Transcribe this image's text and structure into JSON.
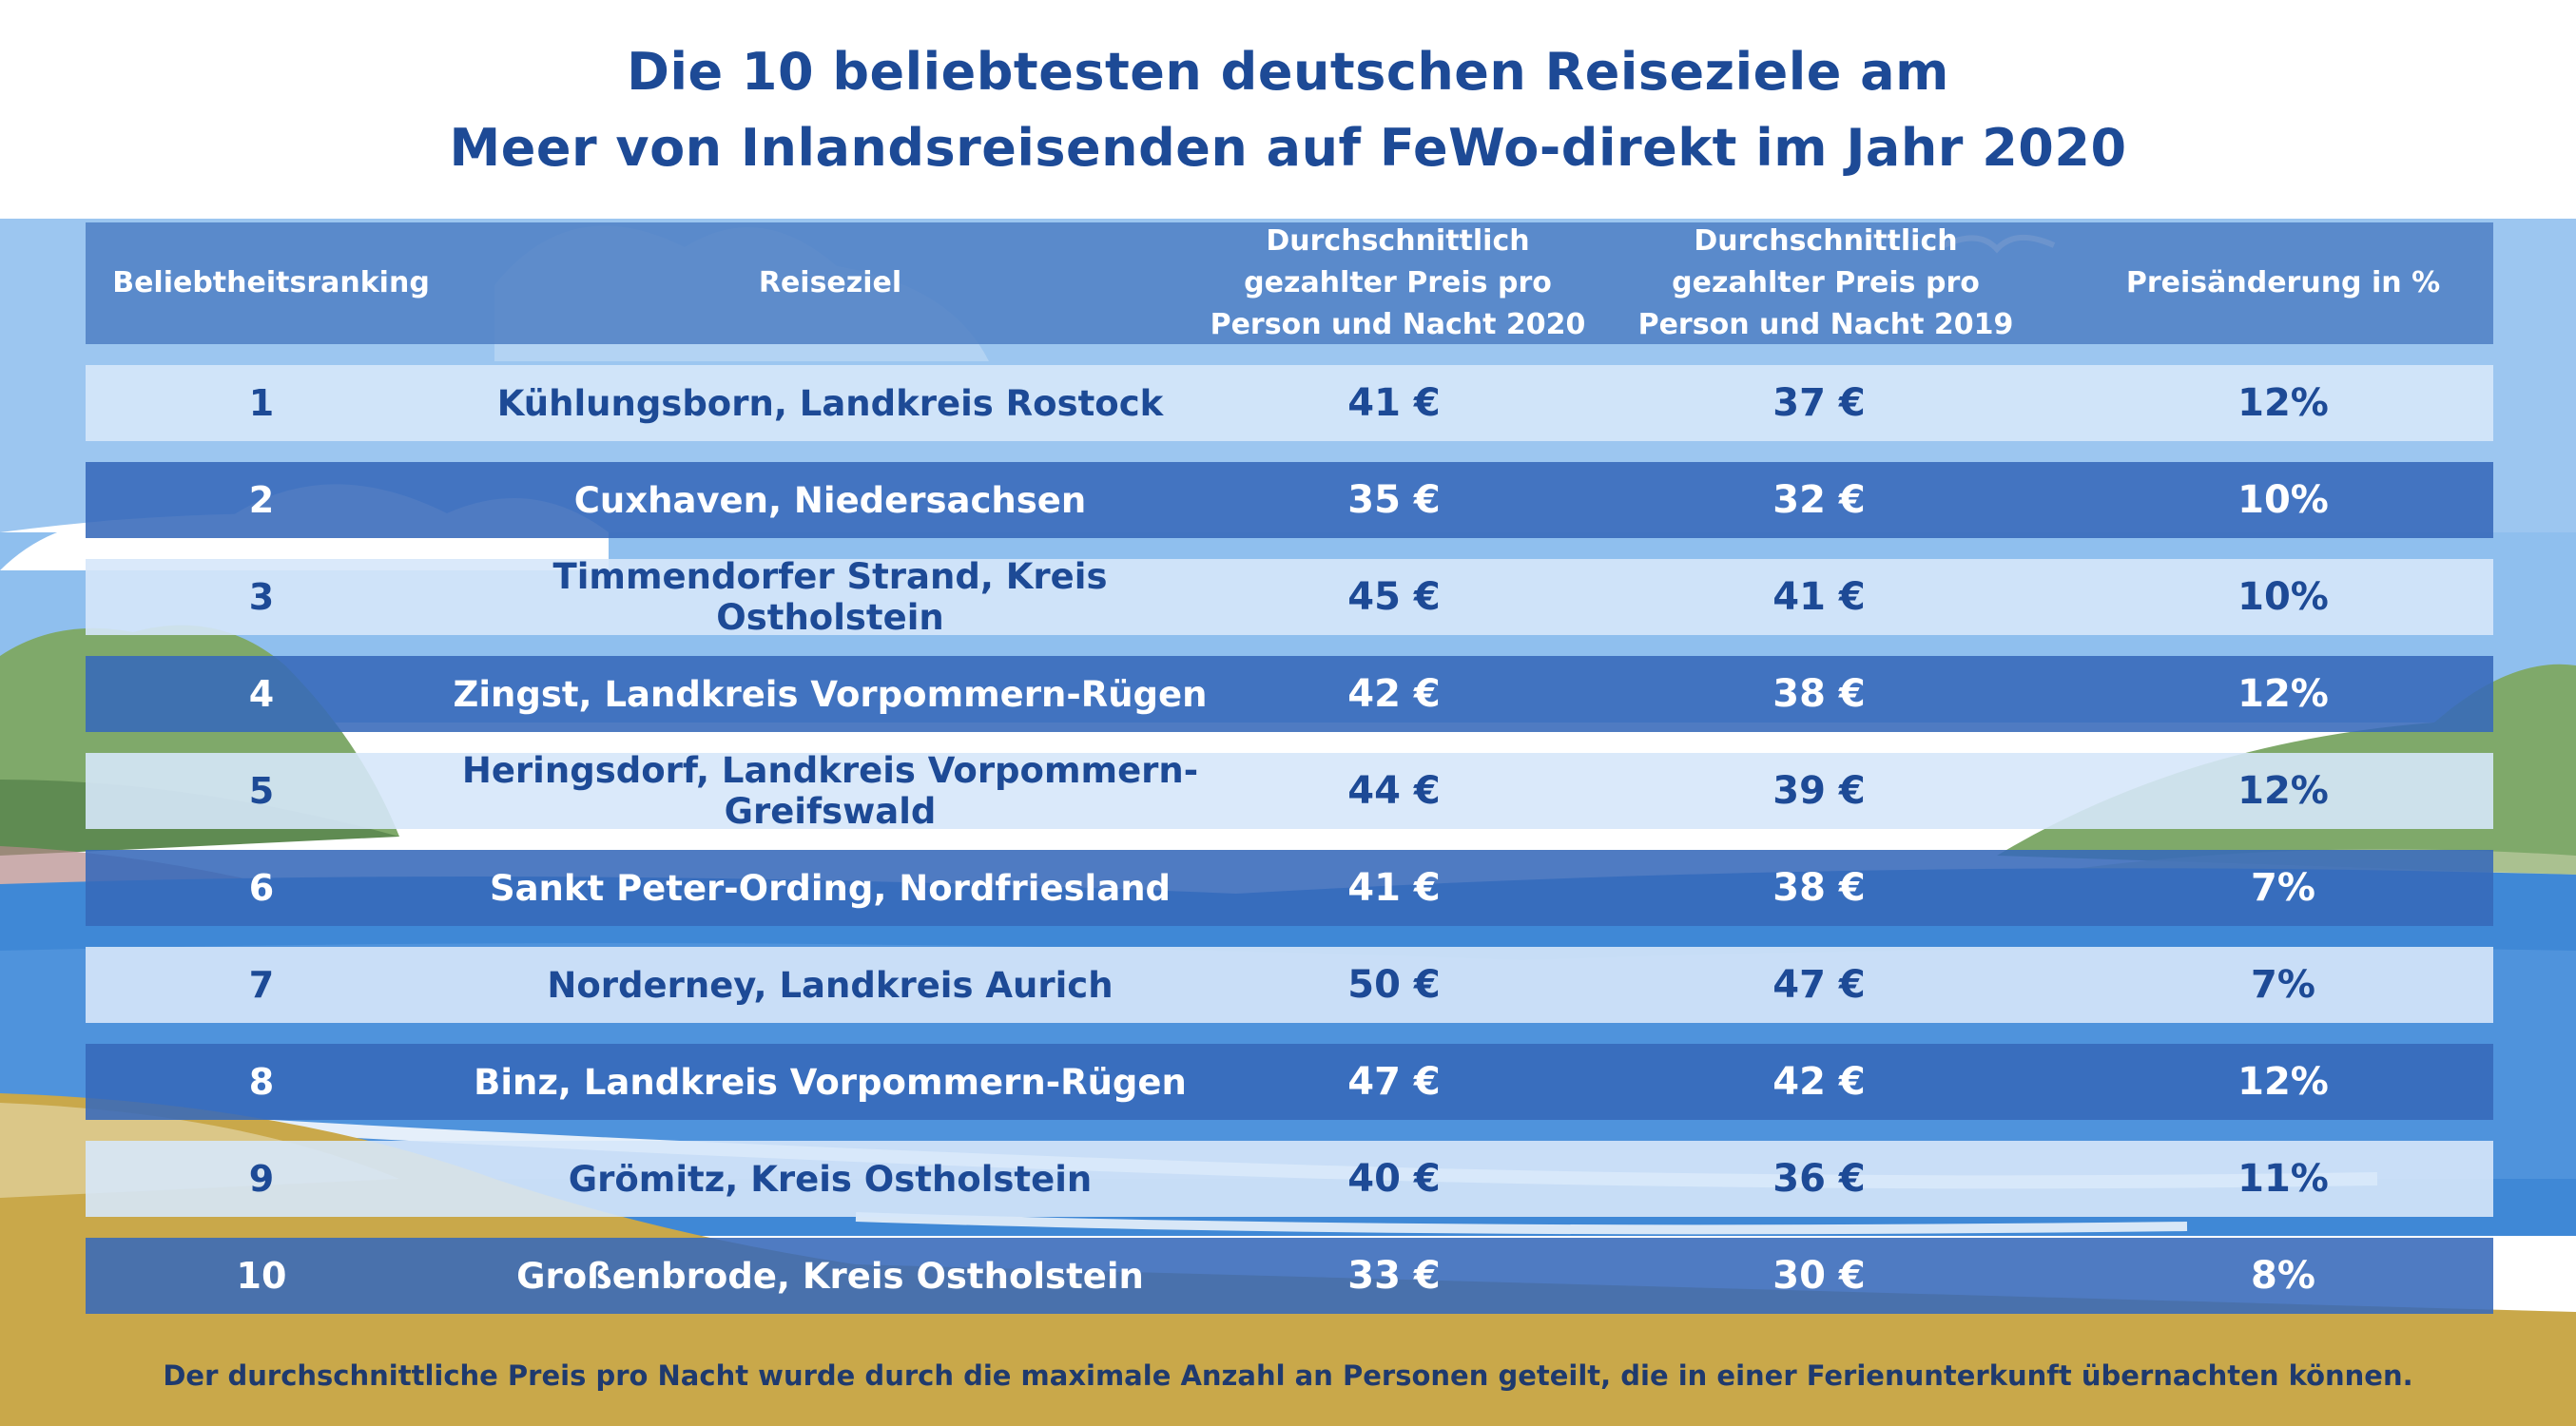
{
  "title_line1": "Die 10 beliebtesten deutschen Reiseziele am",
  "title_line2": "Meer von Inlandsreisenden auf FeWo-direkt im Jahr 2020",
  "headers": {
    "rank": "Beliebtheitsranking",
    "destination": "Reiseziel",
    "price_2020": "Durchschnittlich gezahlter Preis pro Person und Nacht 2020",
    "price_2019": "Durchschnittlich gezahlter Preis pro Person und Nacht 2019",
    "change": "Preisänderung in %"
  },
  "footnote": "Der durchschnittliche Preis pro Nacht wurde durch die maximale Anzahl an Personen geteilt, die in einer Ferienunterkunft übernachten können.",
  "colors": {
    "title": "#1d4a96",
    "header_bg": "#4c7cc2",
    "row_light_text": "#1d4a96",
    "row_dark_text": "#ffffff",
    "sky": "#8ec0ee",
    "sea": "#3f88d6",
    "sand": "#c9a84a",
    "green": "#7fa96a"
  },
  "chart_data": {
    "type": "table",
    "columns": [
      "Beliebtheitsranking",
      "Reiseziel",
      "Durchschnittlich gezahlter Preis pro Person und Nacht 2020",
      "Durchschnittlich gezahlter Preis pro Person und Nacht 2019",
      "Preisänderung in %"
    ],
    "rows": [
      {
        "rank": "1",
        "destination": "Kühlungsborn, Landkreis Rostock",
        "price_2020": "41 €",
        "price_2019": "37 €",
        "change": "12%",
        "style": "light"
      },
      {
        "rank": "2",
        "destination": "Cuxhaven, Niedersachsen",
        "price_2020": "35 €",
        "price_2019": "32 €",
        "change": "10%",
        "style": "dark"
      },
      {
        "rank": "3",
        "destination": "Timmendorfer Strand, Kreis Ostholstein",
        "price_2020": "45 €",
        "price_2019": "41 €",
        "change": "10%",
        "style": "light"
      },
      {
        "rank": "4",
        "destination": "Zingst, Landkreis Vorpommern-Rügen",
        "price_2020": "42 €",
        "price_2019": "38 €",
        "change": "12%",
        "style": "dark"
      },
      {
        "rank": "5",
        "destination": "Heringsdorf, Landkreis Vorpommern-Greifswald",
        "price_2020": "44 €",
        "price_2019": "39 €",
        "change": "12%",
        "style": "light"
      },
      {
        "rank": "6",
        "destination": "Sankt Peter-Ording, Nordfriesland",
        "price_2020": "41 €",
        "price_2019": "38 €",
        "change": "7%",
        "style": "dark"
      },
      {
        "rank": "7",
        "destination": "Norderney, Landkreis Aurich",
        "price_2020": "50 €",
        "price_2019": "47 €",
        "change": "7%",
        "style": "light"
      },
      {
        "rank": "8",
        "destination": "Binz, Landkreis Vorpommern-Rügen",
        "price_2020": "47 €",
        "price_2019": "42 €",
        "change": "12%",
        "style": "dark"
      },
      {
        "rank": "9",
        "destination": "Grömitz, Kreis Ostholstein",
        "price_2020": "40 €",
        "price_2019": "36 €",
        "change": "11%",
        "style": "light"
      },
      {
        "rank": "10",
        "destination": "Großenbrode, Kreis Ostholstein",
        "price_2020": "33 €",
        "price_2019": "30 €",
        "change": "8%",
        "style": "dark"
      }
    ]
  }
}
